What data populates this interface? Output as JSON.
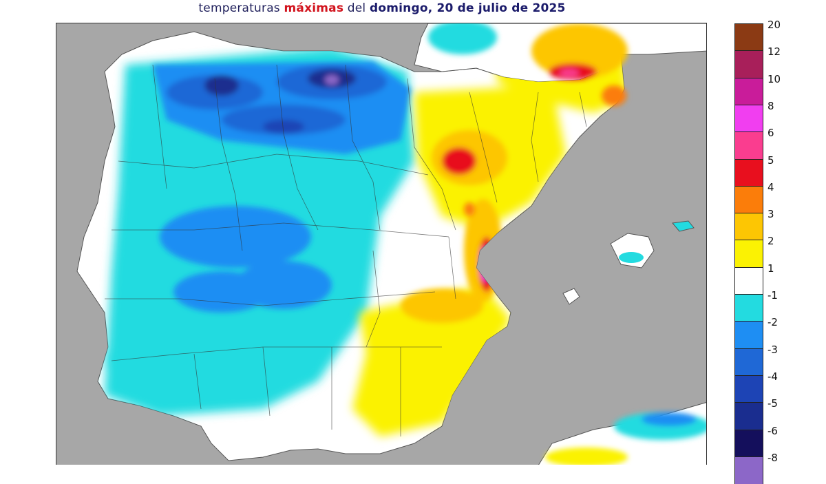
{
  "title": {
    "part1": "temperaturas ",
    "part2": "máximas",
    "part3": " del ",
    "part4": "domingo, 20 de julio de 2025"
  },
  "map": {
    "region": "Iberian Peninsula and Balearic Islands",
    "sea_color": "#a7a7a7",
    "land_base_color": "#ffffff"
  },
  "legend": {
    "labels": [
      "20",
      "12",
      "10",
      "8",
      "6",
      "5",
      "4",
      "3",
      "2",
      "1",
      "-1",
      "-2",
      "-3",
      "-4",
      "-5",
      "-6",
      "-8"
    ],
    "colors": [
      "#8b3a14",
      "#a81f5a",
      "#c91c9a",
      "#f13ef0",
      "#fa3d8f",
      "#e80f1e",
      "#fb7d0a",
      "#fdc603",
      "#fbf203",
      "#ffffff",
      "#23dbe0",
      "#1e8ef3",
      "#1f68d6",
      "#1d44b5",
      "#1a2d8f",
      "#140f5c",
      "#8c67c8"
    ]
  }
}
